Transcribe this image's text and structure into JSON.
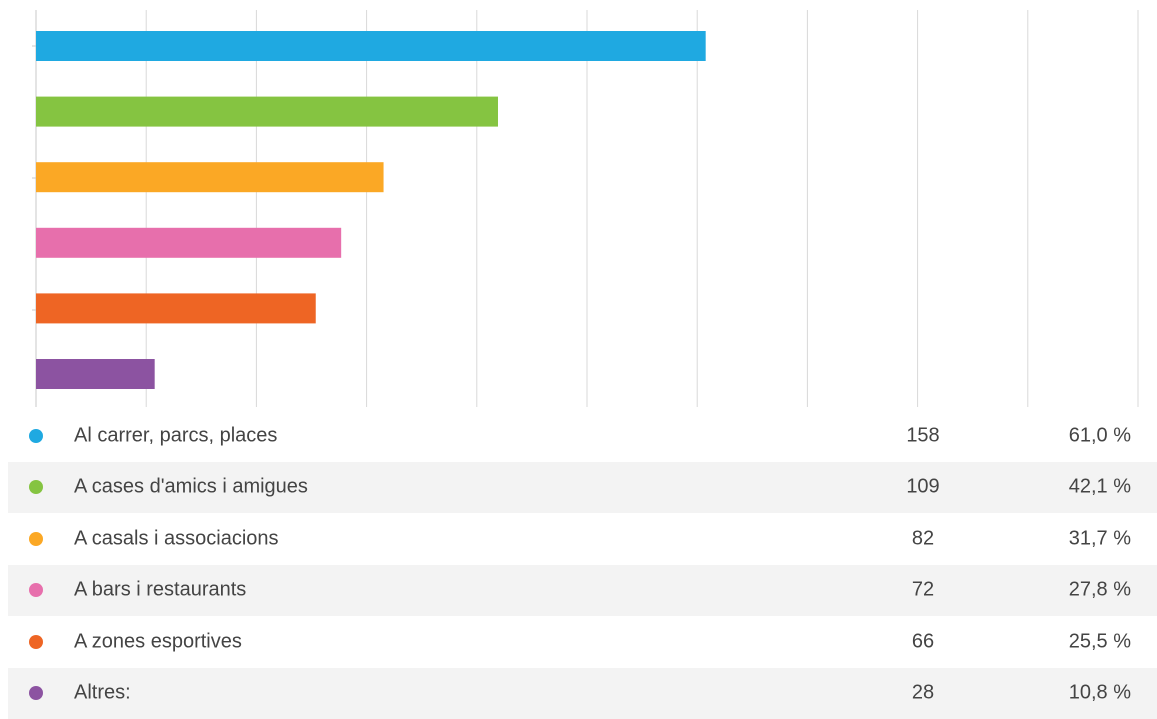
{
  "chart_data": {
    "type": "bar",
    "orientation": "horizontal",
    "categories": [
      "Al carrer, parcs, places",
      "A cases d'amics i amigues",
      "A casals i associacions",
      "A bars i restaurants",
      "A zones esportives",
      "Altres:"
    ],
    "values": [
      158,
      109,
      82,
      72,
      66,
      28
    ],
    "percentages": [
      "61,0 %",
      "42,1 %",
      "31,7 %",
      "27,8 %",
      "25,5 %",
      "10,8 %"
    ],
    "colors": [
      "#1fa9e1",
      "#85c441",
      "#fba825",
      "#e76fac",
      "#ee6524",
      "#8c53a1"
    ],
    "xlim": [
      0,
      260
    ],
    "grid": true,
    "legend": "bottom-table"
  }
}
